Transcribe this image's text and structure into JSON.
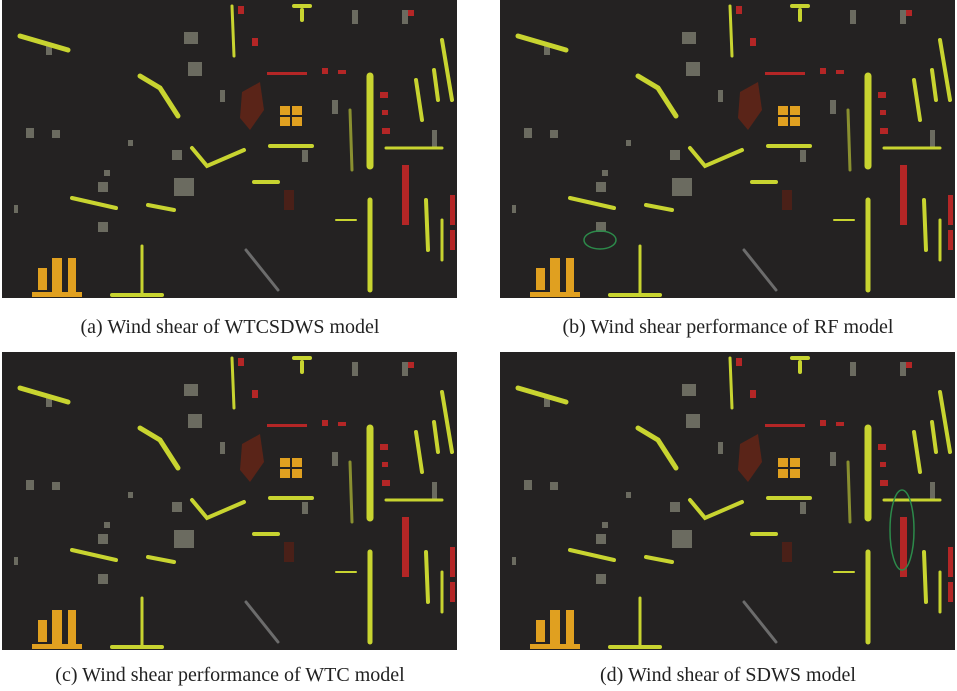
{
  "panels": [
    {
      "caption": "(a) Wind shear of WTCSDWS model"
    },
    {
      "caption": "(b) Wind shear performance of RF model"
    },
    {
      "caption": "(c) Wind shear performance of WTC model"
    },
    {
      "caption": "(d) Wind shear of SDWS model"
    }
  ]
}
